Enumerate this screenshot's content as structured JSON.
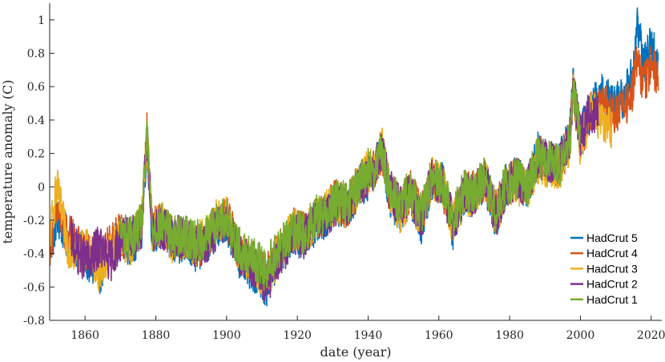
{
  "chart_data": {
    "type": "line",
    "xlabel": "date (year)",
    "ylabel": "temperature anomaly (C)",
    "xlim": [
      1850,
      2023
    ],
    "ylim": [
      -0.8,
      1.1
    ],
    "xticks": [
      1860,
      1880,
      1900,
      1920,
      1940,
      1960,
      1980,
      2000,
      2020
    ],
    "yticks": [
      -0.8,
      -0.6,
      -0.4,
      -0.2,
      0,
      0.2,
      0.4,
      0.6,
      0.8,
      1
    ],
    "ytick_labels": [
      "-0.8",
      "-0.6",
      "-0.4",
      "-0.2",
      "0",
      "0.2",
      "0.4",
      "0.6",
      "0.8",
      "1"
    ],
    "legend_position": "bottom-right",
    "grid": false,
    "colors": {
      "HadCrut 5": "#0072bd",
      "HadCrut 4": "#d95319",
      "HadCrut 3": "#edb120",
      "HadCrut 2": "#7e2f8e",
      "HadCrut 1": "#77ac30"
    },
    "series": [
      {
        "name": "HadCrut 5",
        "x": [
          1850,
          1852,
          1855,
          1858,
          1861,
          1864,
          1867,
          1870,
          1873,
          1876,
          1877.5,
          1879,
          1882,
          1885,
          1888,
          1891,
          1894,
          1897,
          1900,
          1903,
          1906,
          1909,
          1911,
          1913,
          1916,
          1919,
          1922,
          1925,
          1928,
          1931,
          1934,
          1937,
          1940,
          1942,
          1944,
          1946,
          1949,
          1952,
          1955,
          1958,
          1961,
          1964,
          1967,
          1970,
          1973,
          1976,
          1979,
          1982,
          1985,
          1988,
          1991,
          1994,
          1997,
          1998,
          2000,
          2003,
          2006,
          2009,
          2012,
          2015,
          2016,
          2018,
          2020,
          2022
        ],
        "y": [
          -0.4,
          -0.18,
          -0.3,
          -0.38,
          -0.45,
          -0.52,
          -0.38,
          -0.3,
          -0.35,
          -0.25,
          0.3,
          -0.28,
          -0.25,
          -0.35,
          -0.32,
          -0.38,
          -0.35,
          -0.25,
          -0.2,
          -0.4,
          -0.48,
          -0.52,
          -0.6,
          -0.5,
          -0.38,
          -0.28,
          -0.32,
          -0.22,
          -0.18,
          -0.1,
          -0.15,
          -0.02,
          0.05,
          0.12,
          0.22,
          -0.05,
          -0.15,
          -0.05,
          -0.22,
          0.05,
          0.02,
          -0.25,
          -0.05,
          -0.05,
          0.05,
          -0.2,
          0.02,
          0.05,
          0.0,
          0.2,
          0.15,
          0.15,
          0.3,
          0.62,
          0.3,
          0.48,
          0.55,
          0.5,
          0.52,
          0.7,
          0.98,
          0.72,
          0.88,
          0.72
        ]
      },
      {
        "name": "HadCrut 4",
        "x": [
          1850,
          1852,
          1855,
          1858,
          1861,
          1864,
          1867,
          1870,
          1873,
          1876,
          1877.5,
          1879,
          1882,
          1885,
          1888,
          1891,
          1894,
          1897,
          1900,
          1903,
          1906,
          1909,
          1911,
          1913,
          1916,
          1919,
          1922,
          1925,
          1928,
          1931,
          1934,
          1937,
          1940,
          1942,
          1944,
          1946,
          1949,
          1952,
          1955,
          1958,
          1961,
          1964,
          1967,
          1970,
          1973,
          1976,
          1979,
          1982,
          1985,
          1988,
          1991,
          1994,
          1997,
          1998,
          2000,
          2003,
          2006,
          2009,
          2012,
          2015,
          2016,
          2018,
          2020,
          2022
        ],
        "y": [
          -0.35,
          -0.15,
          -0.28,
          -0.35,
          -0.4,
          -0.45,
          -0.35,
          -0.28,
          -0.33,
          -0.22,
          0.32,
          -0.25,
          -0.22,
          -0.32,
          -0.3,
          -0.36,
          -0.33,
          -0.22,
          -0.18,
          -0.35,
          -0.42,
          -0.48,
          -0.55,
          -0.45,
          -0.35,
          -0.25,
          -0.28,
          -0.2,
          -0.15,
          -0.08,
          -0.12,
          0.0,
          0.08,
          0.1,
          0.2,
          -0.02,
          -0.12,
          -0.02,
          -0.18,
          0.05,
          0.0,
          -0.2,
          -0.02,
          -0.03,
          0.05,
          -0.15,
          0.0,
          0.05,
          0.0,
          0.18,
          0.15,
          0.12,
          0.28,
          0.58,
          0.28,
          0.45,
          0.5,
          0.45,
          0.45,
          0.6,
          0.78,
          0.6,
          0.75,
          0.65
        ]
      },
      {
        "name": "HadCrut 3",
        "x": [
          1850,
          1852,
          1855,
          1858,
          1861,
          1864,
          1867,
          1870,
          1873,
          1876,
          1877.5,
          1879,
          1882,
          1885,
          1888,
          1891,
          1894,
          1897,
          1900,
          1903,
          1906,
          1909,
          1911,
          1913,
          1916,
          1919,
          1922,
          1925,
          1928,
          1931,
          1934,
          1937,
          1940,
          1942,
          1944,
          1946,
          1949,
          1952,
          1955,
          1958,
          1961,
          1964,
          1967,
          1970,
          1973,
          1976,
          1979,
          1982,
          1985,
          1988,
          1991,
          1994,
          1997,
          1998,
          2000,
          2003,
          2006,
          2009
        ],
        "y": [
          -0.3,
          0.0,
          -0.35,
          -0.4,
          -0.38,
          -0.5,
          -0.4,
          -0.3,
          -0.35,
          -0.2,
          0.3,
          -0.25,
          -0.22,
          -0.35,
          -0.3,
          -0.35,
          -0.3,
          -0.2,
          -0.18,
          -0.38,
          -0.45,
          -0.5,
          -0.58,
          -0.48,
          -0.35,
          -0.25,
          -0.3,
          -0.2,
          -0.15,
          -0.1,
          -0.12,
          0.0,
          0.1,
          0.1,
          0.25,
          -0.05,
          -0.15,
          -0.05,
          -0.2,
          0.05,
          0.02,
          -0.22,
          -0.05,
          -0.05,
          0.05,
          -0.18,
          0.0,
          0.02,
          -0.02,
          0.15,
          0.12,
          0.1,
          0.25,
          0.55,
          0.25,
          0.45,
          0.4,
          0.35
        ]
      },
      {
        "name": "HadCrut 2",
        "x": [
          1856,
          1858,
          1861,
          1864,
          1867,
          1870,
          1873,
          1876,
          1877.5,
          1879,
          1882,
          1885,
          1888,
          1891,
          1894,
          1897,
          1900,
          1903,
          1906,
          1909,
          1911,
          1913,
          1916,
          1919,
          1922,
          1925,
          1928,
          1931,
          1934,
          1937,
          1940,
          1942,
          1944,
          1946,
          1949,
          1952,
          1955,
          1958,
          1961,
          1964,
          1967,
          1970,
          1973,
          1976,
          1979,
          1982,
          1985,
          1988,
          1991,
          1994,
          1997,
          1998,
          2000,
          2003,
          2005
        ],
        "y": [
          -0.3,
          -0.4,
          -0.45,
          -0.35,
          -0.45,
          -0.32,
          -0.3,
          -0.25,
          0.3,
          -0.28,
          -0.25,
          -0.3,
          -0.3,
          -0.35,
          -0.35,
          -0.25,
          -0.2,
          -0.38,
          -0.45,
          -0.5,
          -0.6,
          -0.5,
          -0.4,
          -0.28,
          -0.3,
          -0.2,
          -0.18,
          -0.1,
          -0.12,
          0.0,
          0.08,
          0.12,
          0.22,
          -0.02,
          -0.12,
          -0.05,
          -0.2,
          0.05,
          0.02,
          -0.22,
          -0.05,
          -0.05,
          0.05,
          -0.18,
          0.0,
          0.05,
          0.0,
          0.18,
          0.15,
          0.12,
          0.3,
          0.6,
          0.3,
          0.45,
          0.45
        ]
      },
      {
        "name": "HadCrut 1",
        "x": [
          1870,
          1873,
          1876,
          1877.5,
          1879,
          1882,
          1885,
          1888,
          1891,
          1894,
          1897,
          1900,
          1903,
          1906,
          1909,
          1911,
          1913,
          1916,
          1919,
          1922,
          1925,
          1928,
          1931,
          1934,
          1937,
          1940,
          1942,
          1944,
          1946,
          1949,
          1952,
          1955,
          1958,
          1961,
          1964,
          1967,
          1970,
          1973,
          1976,
          1979,
          1982,
          1985,
          1988,
          1991,
          1994,
          1997,
          1998,
          2000
        ],
        "y": [
          -0.28,
          -0.3,
          -0.22,
          0.3,
          -0.25,
          -0.22,
          -0.3,
          -0.28,
          -0.33,
          -0.3,
          -0.22,
          -0.18,
          -0.35,
          -0.42,
          -0.45,
          -0.5,
          -0.42,
          -0.35,
          -0.25,
          -0.28,
          -0.18,
          -0.15,
          -0.08,
          -0.1,
          0.0,
          0.1,
          0.12,
          0.2,
          -0.02,
          -0.1,
          -0.02,
          -0.18,
          0.05,
          0.02,
          -0.2,
          -0.02,
          -0.03,
          0.05,
          -0.15,
          0.02,
          0.05,
          0.0,
          0.18,
          0.15,
          0.12,
          0.28,
          0.55,
          0.3
        ]
      }
    ]
  }
}
